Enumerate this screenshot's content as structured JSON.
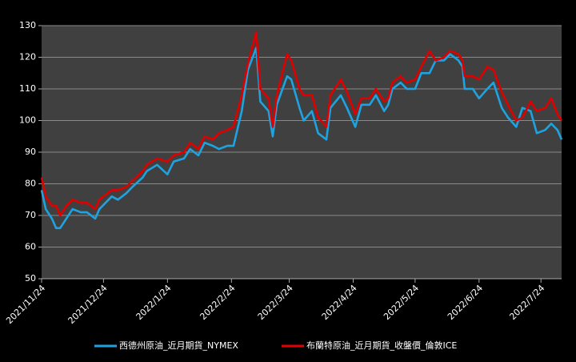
{
  "chart_data": {
    "type": "line",
    "x": [
      "2021/11/24",
      "2021/11/26",
      "2021/11/29",
      "2021/12/1",
      "2021/12/3",
      "2021/12/6",
      "2021/12/9",
      "2021/12/13",
      "2021/12/16",
      "2021/12/20",
      "2021/12/22",
      "2021/12/28",
      "2021/12/31",
      "2022/1/4",
      "2022/1/7",
      "2022/1/12",
      "2022/1/14",
      "2022/1/19",
      "2022/1/24",
      "2022/1/27",
      "2022/2/1",
      "2022/2/4",
      "2022/2/8",
      "2022/2/11",
      "2022/2/15",
      "2022/2/18",
      "2022/2/22",
      "2022/2/25",
      "2022/3/1",
      "2022/3/4",
      "2022/3/8",
      "2022/3/10",
      "2022/3/14",
      "2022/3/16",
      "2022/3/18",
      "2022/3/23",
      "2022/3/25",
      "2022/3/29",
      "2022/3/31",
      "2022/4/4",
      "2022/4/7",
      "2022/4/11",
      "2022/4/13",
      "2022/4/18",
      "2022/4/21",
      "2022/4/25",
      "2022/4/28",
      "2022/5/2",
      "2022/5/5",
      "2022/5/9",
      "2022/5/11",
      "2022/5/13",
      "2022/5/17",
      "2022/5/20",
      "2022/5/24",
      "2022/5/27",
      "2022/5/31",
      "2022/6/3",
      "2022/6/7",
      "2022/6/10",
      "2022/6/14",
      "2022/6/16",
      "2022/6/17",
      "2022/6/21",
      "2022/6/24",
      "2022/6/28",
      "2022/7/1",
      "2022/7/5",
      "2022/7/8",
      "2022/7/12",
      "2022/7/15",
      "2022/7/19",
      "2022/7/22",
      "2022/7/26",
      "2022/7/29",
      "2022/8/1",
      "2022/8/3"
    ],
    "series": [
      {
        "name": "西德州原油_近月期貨_NYMEX",
        "color": "#1fa3e0",
        "values": [
          78,
          72,
          69,
          66,
          66,
          69,
          72,
          71,
          71,
          69,
          72,
          76,
          75,
          77,
          79,
          82,
          84,
          86,
          83,
          87,
          88,
          91,
          89,
          93,
          92,
          91,
          92,
          92,
          103,
          116,
          123,
          106,
          103,
          95,
          105,
          114,
          113,
          104,
          100,
          103,
          96,
          94,
          104,
          108,
          104,
          98,
          105,
          105,
          108,
          103,
          105,
          110,
          112,
          110,
          110,
          115,
          115,
          119,
          119,
          121,
          119,
          117,
          110,
          110,
          107,
          110,
          112,
          104,
          101,
          98,
          104,
          103,
          96,
          97,
          99,
          97,
          94
        ]
      },
      {
        "name": "布蘭特原油_近月期貨_收盤價_倫敦ICE",
        "color": "#e00000",
        "values": [
          82,
          76,
          73,
          73,
          70,
          73,
          75,
          74,
          74,
          72,
          75,
          78,
          78,
          79,
          81,
          84,
          86,
          88,
          87,
          89,
          90,
          93,
          91,
          95,
          94,
          96,
          97,
          98,
          108,
          118,
          128,
          110,
          107,
          98,
          108,
          121,
          119,
          110,
          108,
          108,
          101,
          98,
          108,
          113,
          109,
          102,
          107,
          107,
          110,
          106,
          107,
          112,
          114,
          112,
          113,
          117,
          122,
          119,
          120,
          122,
          121,
          119,
          114,
          114,
          113,
          117,
          116,
          109,
          105,
          100,
          101,
          106,
          103,
          104,
          107,
          102,
          100
        ]
      }
    ],
    "xlim": [
      "2021/11/24",
      "2022/8/3"
    ],
    "xticks": [
      "2021/11/24",
      "2021/12/24",
      "2022/1/24",
      "2022/2/24",
      "2022/3/24",
      "2022/4/24",
      "2022/5/24",
      "2022/6/24",
      "2022/7/24"
    ],
    "ylim": [
      50,
      130
    ],
    "yticks": [
      50,
      60,
      70,
      80,
      90,
      100,
      110,
      120,
      130
    ],
    "grid": true,
    "legend": "bottom"
  }
}
